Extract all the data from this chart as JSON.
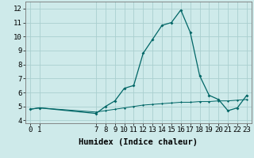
{
  "xlabel": "Humidex (Indice chaleur)",
  "ylabel": "",
  "background_color": "#ceeaea",
  "line_color": "#006666",
  "grid_color": "#aacfcf",
  "x_values": [
    0,
    1,
    7,
    8,
    9,
    10,
    11,
    12,
    13,
    14,
    15,
    16,
    17,
    18,
    19,
    20,
    21,
    22,
    23
  ],
  "y_values": [
    4.8,
    4.9,
    4.5,
    5.0,
    5.4,
    6.3,
    6.5,
    8.8,
    9.8,
    10.8,
    11.0,
    11.9,
    10.3,
    7.2,
    5.8,
    5.5,
    4.7,
    4.9,
    5.8
  ],
  "y2_values": [
    4.8,
    4.9,
    4.6,
    4.7,
    4.8,
    4.9,
    5.0,
    5.1,
    5.15,
    5.2,
    5.25,
    5.3,
    5.3,
    5.35,
    5.35,
    5.4,
    5.4,
    5.45,
    5.5
  ],
  "ylim": [
    3.8,
    12.5
  ],
  "yticks": [
    4,
    5,
    6,
    7,
    8,
    9,
    10,
    11,
    12
  ],
  "xticks": [
    0,
    1,
    7,
    8,
    9,
    10,
    11,
    12,
    13,
    14,
    15,
    16,
    17,
    18,
    19,
    20,
    21,
    22,
    23
  ],
  "tick_fontsize": 6.5,
  "label_fontsize": 7.5
}
